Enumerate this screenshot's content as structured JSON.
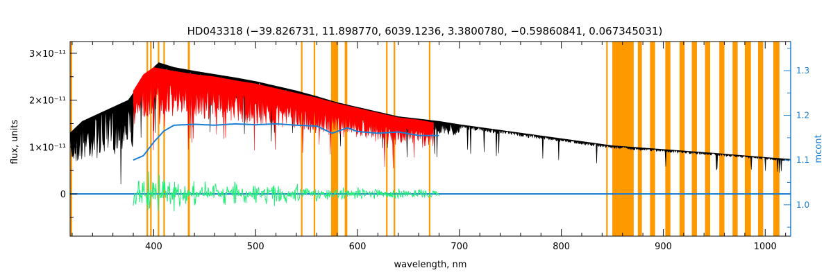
{
  "chart_data": {
    "type": "line",
    "title": "HD043318   (−39.826731, 11.898770, 6039.1236, 3.3800780, −0.59860841, 0.067345031)",
    "xlabel": "wavelength, nm",
    "ylabel": "flux, units",
    "y2label": "mcont",
    "xlim": [
      318,
      1025
    ],
    "ylim": [
      -9e-12,
      3.25e-11
    ],
    "y2lim": [
      0.93,
      1.365
    ],
    "x_ticks": [
      400,
      500,
      600,
      700,
      800,
      900,
      1000
    ],
    "y_ticks": [
      {
        "value": 0,
        "label": "0"
      },
      {
        "value": 1e-11,
        "label": "1×10⁻¹¹"
      },
      {
        "value": 2e-11,
        "label": "2×10⁻¹¹"
      },
      {
        "value": 3e-11,
        "label": "3×10⁻¹¹"
      }
    ],
    "y2_ticks": [
      1.0,
      1.1,
      1.2,
      1.3
    ],
    "grid": false,
    "colors": {
      "observed": "#000000",
      "model": "#ff0000",
      "continuum": "#1a7fd4",
      "residuals": "#22ee77",
      "masked": "#ff9900",
      "zero_line": "#1a7fd4",
      "right_axis": "#1a7fd4"
    },
    "series": [
      {
        "role": "observed",
        "x": [
          318,
          330,
          345,
          360,
          375,
          385,
          395,
          405,
          420,
          440,
          460,
          480,
          500,
          520,
          540,
          560,
          580,
          600,
          620,
          640,
          660,
          680,
          700,
          720,
          740,
          760,
          780,
          800,
          820,
          840,
          850,
          900,
          950,
          1000,
          1025
        ],
        "y": [
          1.3e-11,
          1.55e-11,
          1.7e-11,
          1.85e-11,
          2e-11,
          2.3e-11,
          2.6e-11,
          2.8e-11,
          2.7e-11,
          2.62e-11,
          2.55e-11,
          2.48e-11,
          2.4e-11,
          2.3e-11,
          2.2e-11,
          2.08e-11,
          1.95e-11,
          1.85e-11,
          1.75e-11,
          1.65e-11,
          1.6e-11,
          1.55e-11,
          1.48e-11,
          1.42e-11,
          1.36e-11,
          1.3e-11,
          1.24e-11,
          1.18e-11,
          1.12e-11,
          1.06e-11,
          1.03e-11,
          9.5e-12,
          8.7e-12,
          7.8e-12,
          7.4e-12
        ]
      },
      {
        "role": "model",
        "x": [
          380,
          390,
          400,
          420,
          440,
          460,
          480,
          500,
          520,
          540,
          560,
          580,
          600,
          620,
          640,
          660,
          675
        ],
        "y": [
          2.2e-11,
          2.55e-11,
          2.7e-11,
          2.62e-11,
          2.55e-11,
          2.5e-11,
          2.42e-11,
          2.35e-11,
          2.25e-11,
          2.15e-11,
          2.05e-11,
          1.93e-11,
          1.83e-11,
          1.73e-11,
          1.63e-11,
          1.58e-11,
          1.52e-11
        ]
      },
      {
        "role": "continuum",
        "axis": "right",
        "x": [
          380,
          390,
          400,
          410,
          420,
          440,
          460,
          480,
          500,
          520,
          540,
          560,
          575,
          590,
          600,
          620,
          640,
          660,
          680
        ],
        "y": [
          1.1,
          1.11,
          1.14,
          1.165,
          1.178,
          1.18,
          1.178,
          1.181,
          1.179,
          1.181,
          1.178,
          1.176,
          1.16,
          1.172,
          1.164,
          1.16,
          1.163,
          1.155,
          1.155
        ]
      },
      {
        "role": "residuals",
        "x": [
          380,
          382,
          385,
          390,
          395,
          400,
          405,
          410,
          415,
          420,
          425,
          430,
          440,
          450,
          460,
          470,
          480,
          490,
          500,
          510,
          520,
          530,
          540,
          550,
          560,
          570,
          575,
          585,
          600,
          620,
          640,
          660,
          680
        ],
        "y": [
          2e-12,
          -3e-12,
          3.5e-12,
          -5e-12,
          5e-12,
          -6e-12,
          4.5e-12,
          -4.5e-12,
          4e-12,
          -3.5e-12,
          3e-12,
          -3e-12,
          2.5e-12,
          -2.5e-12,
          2e-12,
          -2e-12,
          2.5e-12,
          -2e-12,
          2.2e-12,
          -2.2e-12,
          3e-12,
          -1.5e-12,
          2e-12,
          -1.5e-12,
          1.2e-12,
          -8e-13,
          0.0,
          1e-12,
          -1e-12,
          8e-13,
          -8e-13,
          6e-13,
          0.0
        ]
      }
    ],
    "masked_regions": [
      [
        318.5,
        320.0
      ],
      [
        393.0,
        394.5
      ],
      [
        396.5,
        398.0
      ],
      [
        404.0,
        405.5
      ],
      [
        409.5,
        411.0
      ],
      [
        433.5,
        435.5
      ],
      [
        544.5,
        546.0
      ],
      [
        557.0,
        558.5
      ],
      [
        574.0,
        581.0
      ],
      [
        587.5,
        590.0
      ],
      [
        628.0,
        629.5
      ],
      [
        635.5,
        637.0
      ],
      [
        670.0,
        671.5
      ],
      [
        844.0,
        845.5
      ],
      [
        850.0,
        871.0
      ],
      [
        875.0,
        879.0
      ],
      [
        887.0,
        892.0
      ],
      [
        902.0,
        907.0
      ],
      [
        916.0,
        921.0
      ],
      [
        928.0,
        933.0
      ],
      [
        941.0,
        946.0
      ],
      [
        955.0,
        960.0
      ],
      [
        968.0,
        973.0
      ],
      [
        980.0,
        986.0
      ],
      [
        993.0,
        998.0
      ],
      [
        1008.0,
        1014.0
      ]
    ]
  }
}
